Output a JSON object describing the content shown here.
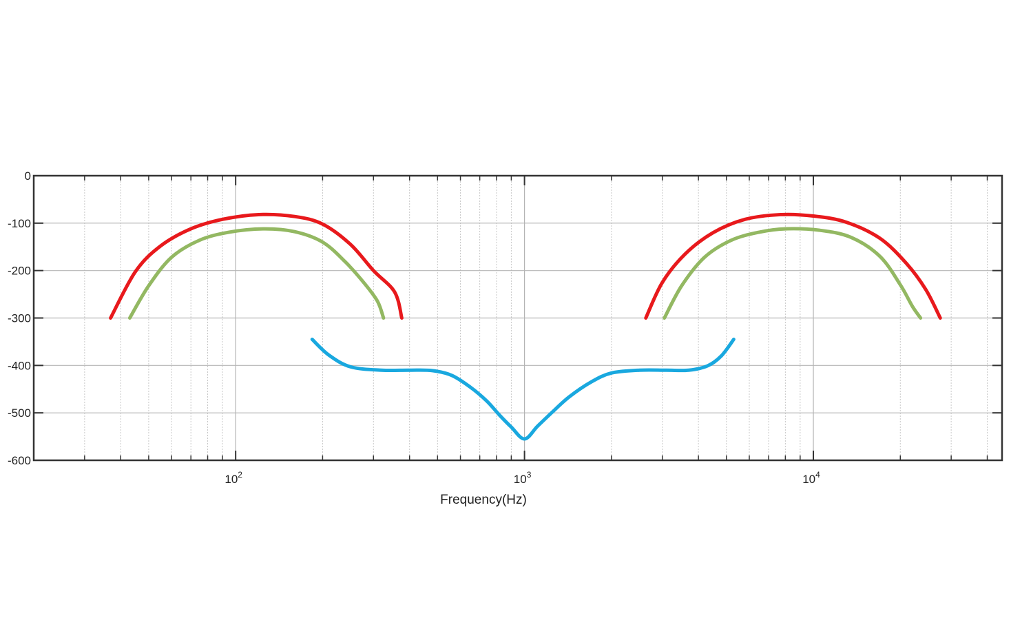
{
  "chart_data": {
    "type": "line",
    "xscale": "log",
    "xlim": [
      20,
      45000
    ],
    "ylim": [
      -600,
      0
    ],
    "xlabel": "Frequency(Hz)",
    "ylabel": "",
    "grid": true,
    "colors": {
      "red": "#e8191c",
      "green": "#93b862",
      "blue": "#19a8df"
    },
    "y_ticks": [
      {
        "value": 0,
        "label": "0"
      },
      {
        "value": -100,
        "label": "-100"
      },
      {
        "value": -200,
        "label": "-200"
      },
      {
        "value": -300,
        "label": "-300"
      },
      {
        "value": -400,
        "label": "-400"
      },
      {
        "value": -500,
        "label": "-500"
      },
      {
        "value": -600,
        "label": "-600"
      }
    ],
    "x_ticks": [
      {
        "value": 100,
        "base": "10",
        "exp": "2"
      },
      {
        "value": 1000,
        "base": "10",
        "exp": "3"
      },
      {
        "value": 10000,
        "base": "10",
        "exp": "4"
      }
    ],
    "series": [
      {
        "color": "#e8191c",
        "x": [
          36.9,
          45,
          55,
          70,
          90,
          120,
          160,
          200,
          250,
          300,
          355,
          376
        ],
        "y": [
          -300,
          -202,
          -148,
          -112,
          -92,
          -82,
          -86,
          -102,
          -145,
          -200,
          -245,
          -300
        ]
      },
      {
        "color": "#93b862",
        "x": [
          43,
          50,
          60,
          75,
          95,
          125,
          160,
          200,
          240,
          280,
          310,
          325
        ],
        "y": [
          -300,
          -232,
          -172,
          -136,
          -119,
          -112,
          -118,
          -140,
          -182,
          -228,
          -265,
          -300
        ]
      },
      {
        "color": "#e8191c",
        "x": [
          2630,
          3000,
          3600,
          4500,
          5800,
          7700,
          10000,
          13000,
          17000,
          21000,
          24500,
          27500
        ],
        "y": [
          -300,
          -225,
          -165,
          -120,
          -92,
          -82,
          -85,
          -98,
          -132,
          -185,
          -240,
          -300
        ]
      },
      {
        "color": "#93b862",
        "x": [
          3050,
          3500,
          4200,
          5200,
          6500,
          8000,
          10500,
          13500,
          17000,
          20000,
          22000,
          23500
        ],
        "y": [
          -300,
          -232,
          -172,
          -136,
          -119,
          -112,
          -115,
          -130,
          -170,
          -230,
          -275,
          -300
        ]
      },
      {
        "color": "#19a8df",
        "x": [
          184,
          210,
          250,
          320,
          400,
          480,
          560,
          650,
          740,
          820,
          900,
          1000,
          1110,
          1250,
          1430,
          1700,
          2000,
          2500,
          3100,
          3700,
          4300,
          4800,
          5300
        ],
        "y": [
          -345,
          -378,
          -403,
          -410,
          -410,
          -411,
          -421,
          -446,
          -475,
          -505,
          -530,
          -555,
          -528,
          -498,
          -466,
          -435,
          -416,
          -410,
          -410,
          -410,
          -401,
          -380,
          -345
        ]
      }
    ]
  }
}
